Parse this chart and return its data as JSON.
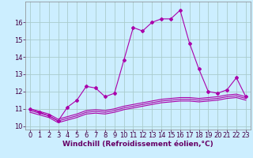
{
  "xlabel": "Windchill (Refroidissement éolien,°C)",
  "background_color": "#cceeff",
  "grid_color": "#aacccc",
  "line_color": "#aa00aa",
  "hours": [
    0,
    1,
    2,
    3,
    4,
    5,
    6,
    7,
    8,
    9,
    10,
    11,
    12,
    13,
    14,
    15,
    16,
    17,
    18,
    19,
    20,
    21,
    22,
    23
  ],
  "temp_main": [
    11.0,
    10.8,
    10.6,
    10.3,
    11.1,
    11.5,
    12.3,
    12.2,
    11.7,
    11.9,
    13.8,
    15.7,
    15.5,
    16.0,
    16.2,
    16.2,
    16.7,
    14.8,
    13.3,
    12.0,
    11.9,
    12.1,
    12.8,
    11.7
  ],
  "temp_line2": [
    11.0,
    10.85,
    10.7,
    10.4,
    10.55,
    10.7,
    10.9,
    10.95,
    10.9,
    11.0,
    11.15,
    11.25,
    11.35,
    11.45,
    11.55,
    11.6,
    11.65,
    11.65,
    11.6,
    11.65,
    11.7,
    11.8,
    11.85,
    11.7
  ],
  "temp_line3": [
    10.9,
    10.75,
    10.6,
    10.3,
    10.45,
    10.6,
    10.8,
    10.85,
    10.8,
    10.9,
    11.05,
    11.15,
    11.25,
    11.35,
    11.45,
    11.5,
    11.55,
    11.55,
    11.5,
    11.55,
    11.6,
    11.7,
    11.75,
    11.6
  ],
  "temp_line4": [
    10.8,
    10.65,
    10.5,
    10.2,
    10.35,
    10.5,
    10.7,
    10.75,
    10.7,
    10.8,
    10.95,
    11.05,
    11.15,
    11.25,
    11.35,
    11.4,
    11.45,
    11.45,
    11.4,
    11.45,
    11.5,
    11.6,
    11.65,
    11.5
  ],
  "ylim": [
    9.8,
    17.2
  ],
  "yticks": [
    10,
    11,
    12,
    13,
    14,
    15,
    16
  ],
  "xlim": [
    -0.5,
    23.5
  ],
  "xticks": [
    0,
    1,
    2,
    3,
    4,
    5,
    6,
    7,
    8,
    9,
    10,
    11,
    12,
    13,
    14,
    15,
    16,
    17,
    18,
    19,
    20,
    21,
    22,
    23
  ],
  "marker": "D",
  "markersize": 2,
  "linewidth": 0.8,
  "xlabel_fontsize": 6.5,
  "tick_fontsize": 6.0
}
